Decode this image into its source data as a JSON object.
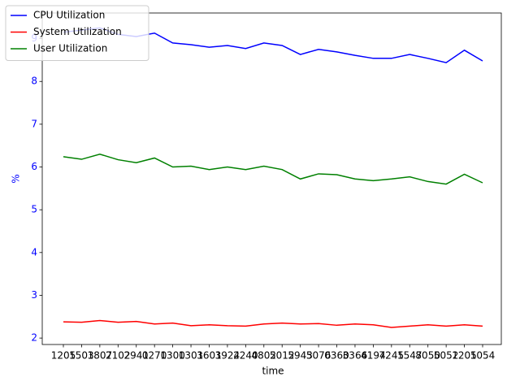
{
  "chart_data": {
    "type": "line",
    "xlabel": "time",
    "ylabel": "%",
    "categories": [
      "1205",
      "1503",
      "1807",
      "2102",
      "2941",
      "0270",
      "1300",
      "1301",
      "3601",
      "3924",
      "2240",
      "4802",
      "5012",
      "5943",
      "5076",
      "0360",
      "3366",
      "4194",
      "7245",
      "1547",
      "8050",
      "5052",
      "1205",
      "1054"
    ],
    "series": [
      {
        "name": "CPU Utilization",
        "color": "#0000ff",
        "values": [
          9.15,
          9.2,
          9.25,
          9.1,
          9.05,
          9.13,
          8.9,
          8.86,
          8.8,
          8.84,
          8.77,
          8.9,
          8.84,
          8.63,
          8.75,
          8.69,
          8.61,
          8.54,
          8.54,
          8.63,
          8.54,
          8.44,
          8.73,
          8.48
        ]
      },
      {
        "name": "System Utilization",
        "color": "#ff0000",
        "values": [
          2.38,
          2.37,
          2.41,
          2.37,
          2.39,
          2.33,
          2.35,
          2.29,
          2.31,
          2.29,
          2.28,
          2.33,
          2.35,
          2.33,
          2.34,
          2.3,
          2.33,
          2.31,
          2.25,
          2.28,
          2.31,
          2.28,
          2.31,
          2.28
        ]
      },
      {
        "name": "User Utilization",
        "color": "#008000",
        "values": [
          6.24,
          6.18,
          6.3,
          6.17,
          6.1,
          6.21,
          6.0,
          6.02,
          5.94,
          6.0,
          5.94,
          6.02,
          5.94,
          5.72,
          5.84,
          5.82,
          5.72,
          5.68,
          5.72,
          5.77,
          5.66,
          5.6,
          5.83,
          5.63
        ]
      }
    ],
    "ylim": [
      1.85,
      9.6
    ],
    "yticks": [
      2,
      3,
      4,
      5,
      6,
      7,
      8,
      9
    ],
    "ytick_color": "#0000ff",
    "legend": "upper left"
  }
}
